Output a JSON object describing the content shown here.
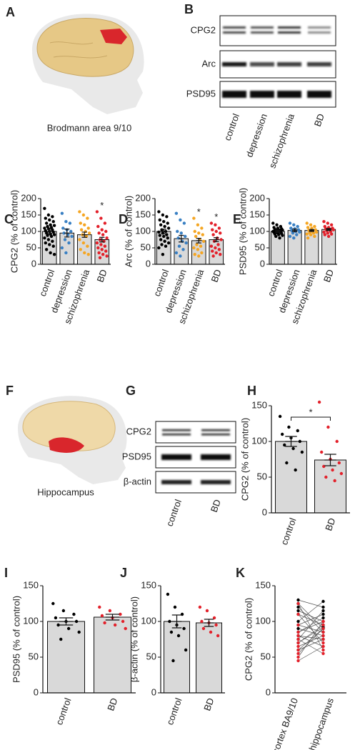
{
  "panels": {
    "letters": [
      "A",
      "B",
      "C",
      "D",
      "E",
      "F",
      "G",
      "H",
      "I",
      "J",
      "K"
    ],
    "caption_a": "Brodmann area 9/10",
    "caption_f": "Hippocampus",
    "blot_b": {
      "rows": [
        "CPG2",
        "Arc",
        "PSD95"
      ],
      "lanes": [
        "control",
        "depression",
        "schizophrenia",
        "BD"
      ]
    },
    "blot_g": {
      "rows": [
        "CPG2",
        "PSD95",
        "β-actin"
      ],
      "lanes": [
        "control",
        "BD"
      ]
    }
  },
  "chart_data": [
    {
      "type": "bar",
      "ylabel": "CPG2 (% of control)",
      "categories": [
        "control",
        "depression",
        "schizophrenia",
        "BD"
      ],
      "values": [
        100,
        95,
        90,
        75
      ],
      "errors": [
        7,
        12,
        8,
        7
      ],
      "colors": [
        "#000000",
        "#3a80c3",
        "#f5a623",
        "#e3212b"
      ],
      "points": [
        [
          170,
          150,
          145,
          140,
          135,
          130,
          125,
          120,
          118,
          115,
          112,
          110,
          108,
          105,
          102,
          100,
          98,
          95,
          92,
          90,
          88,
          85,
          80,
          75,
          70,
          65,
          60,
          55,
          45,
          35,
          30
        ],
        [
          155,
          130,
          125,
          110,
          105,
          100,
          95,
          90,
          85,
          75,
          65,
          50,
          35
        ],
        [
          160,
          150,
          140,
          125,
          120,
          110,
          105,
          100,
          95,
          90,
          85,
          75,
          65,
          55,
          45,
          35,
          30
        ],
        [
          160,
          140,
          125,
          115,
          105,
          100,
          95,
          90,
          80,
          75,
          70,
          65,
          60,
          55,
          50,
          45,
          40,
          35,
          30,
          25,
          20
        ]
      ],
      "significance": [
        null,
        null,
        null,
        "*"
      ],
      "ylim": [
        0,
        200
      ],
      "yticks": [
        0,
        50,
        100,
        150,
        200
      ]
    },
    {
      "type": "bar",
      "ylabel": "Arc (% of control)",
      "categories": [
        "control",
        "depression",
        "schizophrenia",
        "BD"
      ],
      "values": [
        100,
        78,
        72,
        75
      ],
      "errors": [
        7,
        10,
        7,
        6
      ],
      "colors": [
        "#000000",
        "#3a80c3",
        "#f5a623",
        "#e3212b"
      ],
      "points": [
        [
          160,
          150,
          145,
          135,
          130,
          125,
          120,
          115,
          110,
          105,
          100,
          98,
          95,
          90,
          88,
          85,
          80,
          75,
          70,
          65,
          60,
          55,
          50,
          30
        ],
        [
          155,
          135,
          125,
          100,
          95,
          85,
          80,
          70,
          65,
          55,
          45,
          35,
          25
        ],
        [
          140,
          120,
          110,
          100,
          95,
          90,
          85,
          75,
          70,
          60,
          55,
          50,
          45,
          35,
          30,
          25
        ],
        [
          125,
          120,
          110,
          105,
          100,
          95,
          90,
          80,
          75,
          70,
          60,
          55,
          50,
          45,
          40,
          35,
          30,
          25
        ]
      ],
      "significance": [
        null,
        null,
        "*",
        "*"
      ],
      "ylim": [
        0,
        200
      ],
      "yticks": [
        0,
        50,
        100,
        150,
        200
      ]
    },
    {
      "type": "bar",
      "ylabel": "PSD95 (% of control)",
      "categories": [
        "control",
        "depression",
        "schizophrenia",
        "BD"
      ],
      "values": [
        100,
        103,
        103,
        106
      ],
      "errors": [
        3,
        4,
        3,
        3
      ],
      "colors": [
        "#000000",
        "#3a80c3",
        "#f5a623",
        "#e3212b"
      ],
      "points": [
        [
          125,
          120,
          115,
          112,
          110,
          108,
          106,
          105,
          104,
          103,
          102,
          100,
          100,
          98,
          97,
          95,
          94,
          92,
          90,
          88,
          85,
          80
        ],
        [
          125,
          120,
          115,
          110,
          108,
          105,
          102,
          100,
          98,
          95,
          90,
          85,
          80
        ],
        [
          125,
          120,
          115,
          112,
          110,
          105,
          103,
          100,
          98,
          96,
          95,
          92,
          90,
          85,
          80
        ],
        [
          130,
          125,
          120,
          115,
          112,
          110,
          108,
          106,
          105,
          103,
          100,
          98,
          95,
          92,
          90,
          85
        ]
      ],
      "ylim": [
        0,
        200
      ],
      "yticks": [
        0,
        50,
        100,
        150,
        200
      ]
    },
    {
      "type": "bar",
      "ylabel": "CPG2 (% of control)",
      "categories": [
        "control",
        "BD"
      ],
      "values": [
        100,
        74
      ],
      "errors": [
        7,
        8
      ],
      "colors": [
        "#000000",
        "#e3212b"
      ],
      "points": [
        [
          135,
          120,
          115,
          110,
          105,
          100,
          95,
          90,
          85,
          70,
          60
        ],
        [
          155,
          120,
          100,
          85,
          75,
          70,
          65,
          60,
          55,
          50,
          45
        ]
      ],
      "bracket_label": "*",
      "ylim": [
        0,
        150
      ],
      "yticks": [
        0,
        50,
        100,
        150
      ]
    },
    {
      "type": "bar",
      "ylabel": "PSD95 (% of control)",
      "categories": [
        "control",
        "BD"
      ],
      "values": [
        100,
        106
      ],
      "errors": [
        5,
        4
      ],
      "colors": [
        "#000000",
        "#e3212b"
      ],
      "points": [
        [
          125,
          115,
          110,
          105,
          100,
          100,
          95,
          90,
          85,
          75
        ],
        [
          120,
          115,
          110,
          108,
          105,
          100,
          98,
          95,
          90
        ]
      ],
      "ylim": [
        0,
        150
      ],
      "yticks": [
        0,
        50,
        100,
        150
      ]
    },
    {
      "type": "bar",
      "ylabel": "β-actin (% of control)",
      "categories": [
        "control",
        "BD"
      ],
      "values": [
        100,
        98
      ],
      "errors": [
        9,
        5
      ],
      "colors": [
        "#000000",
        "#e3212b"
      ],
      "points": [
        [
          138,
          120,
          110,
          100,
          95,
          90,
          85,
          80,
          60,
          45
        ],
        [
          120,
          115,
          105,
          100,
          98,
          95,
          90,
          85,
          80
        ]
      ],
      "ylim": [
        0,
        150
      ],
      "yticks": [
        0,
        50,
        100,
        150
      ]
    },
    {
      "type": "paired",
      "ylabel": "CPG2 (% of control)",
      "categories": [
        "cortex BA9/10",
        "hippocampus"
      ],
      "series": [
        {
          "color": "#000000",
          "pairs": [
            [
              130,
              120
            ],
            [
              125,
              90
            ],
            [
              120,
              85
            ],
            [
              115,
              100
            ],
            [
              110,
              95
            ],
            [
              100,
              128
            ],
            [
              95,
              110
            ],
            [
              90,
              80
            ],
            [
              85,
              105
            ],
            [
              80,
              75
            ],
            [
              75,
              115
            ],
            [
              70,
              92
            ],
            [
              60,
              90
            ]
          ]
        },
        {
          "color": "#e3212b",
          "pairs": [
            [
              125,
              60
            ],
            [
              110,
              70
            ],
            [
              95,
              85
            ],
            [
              85,
              100
            ],
            [
              80,
              65
            ],
            [
              75,
              55
            ],
            [
              70,
              95
            ],
            [
              65,
              80
            ],
            [
              60,
              75
            ],
            [
              55,
              90
            ],
            [
              50,
              100
            ],
            [
              45,
              65
            ]
          ]
        }
      ],
      "ylim": [
        0,
        150
      ],
      "yticks": [
        0,
        50,
        100,
        150
      ]
    }
  ]
}
